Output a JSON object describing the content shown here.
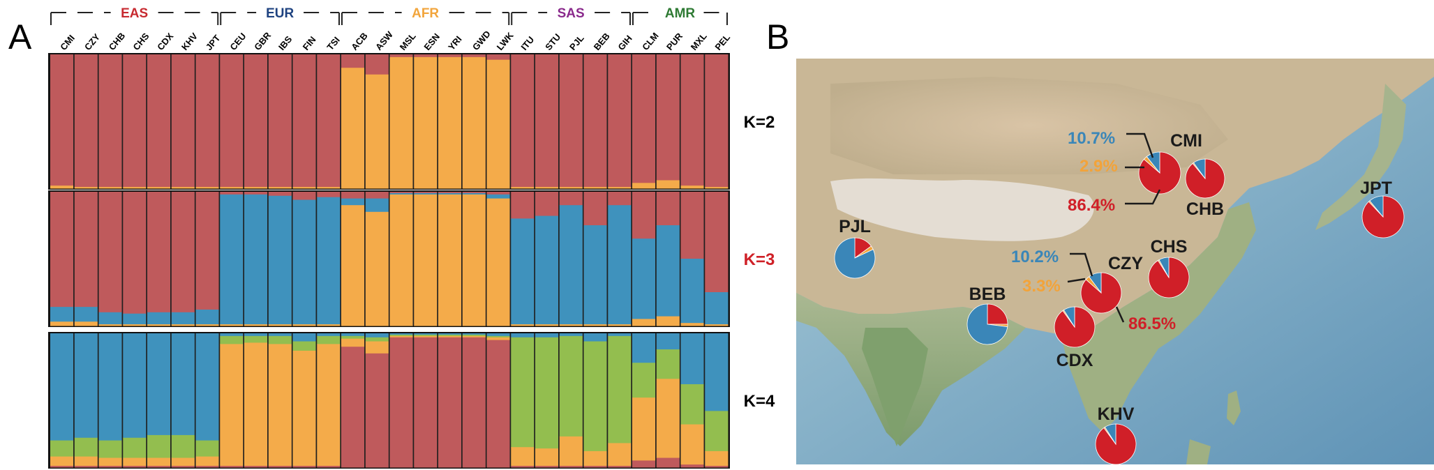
{
  "panels": {
    "a": "A",
    "b": "B"
  },
  "colors": {
    "red": "#bf5a5c",
    "orange": "#f4ab4a",
    "blue": "#3f92bd",
    "green": "#93be4f",
    "pie_red": "#d01f28",
    "pie_blue": "#3a86b8",
    "pie_orange": "#f2a33a",
    "EAS": "#c72a30",
    "EUR": "#1e4280",
    "AFR": "#f2a53c",
    "SAS": "#8a2a8c",
    "AMR": "#2e7a33"
  },
  "chart_data": [
    {
      "type": "admixture-bar",
      "groups": [
        {
          "name": "EAS",
          "populations": [
            "CMI",
            "CZY",
            "CHB",
            "CHS",
            "CDX",
            "KHV",
            "JPT"
          ]
        },
        {
          "name": "EUR",
          "populations": [
            "CEU",
            "GBR",
            "IBS",
            "FIN",
            "TSI"
          ]
        },
        {
          "name": "AFR",
          "populations": [
            "ACB",
            "ASW",
            "MSL",
            "ESN",
            "YRI",
            "GWD",
            "LWK"
          ]
        },
        {
          "name": "SAS",
          "populations": [
            "ITU",
            "STU",
            "PJL",
            "BEB",
            "GIH"
          ]
        },
        {
          "name": "AMR",
          "populations": [
            "CLM",
            "PUR",
            "MXL",
            "PEL"
          ]
        }
      ],
      "populations": [
        "CMI",
        "CZY",
        "CHB",
        "CHS",
        "CDX",
        "KHV",
        "JPT",
        "CEU",
        "GBR",
        "IBS",
        "FIN",
        "TSI",
        "ACB",
        "ASW",
        "MSL",
        "ESN",
        "YRI",
        "GWD",
        "LWK",
        "ITU",
        "STU",
        "PJL",
        "BEB",
        "GIH",
        "CLM",
        "PUR",
        "MXL",
        "PEL"
      ],
      "rows": [
        {
          "label": "K=2",
          "label_color": "#000000",
          "components": [
            "red",
            "orange"
          ],
          "fractions": [
            [
              0.98,
              0.02
            ],
            [
              0.99,
              0.01
            ],
            [
              0.99,
              0.01
            ],
            [
              0.99,
              0.01
            ],
            [
              0.99,
              0.01
            ],
            [
              0.99,
              0.01
            ],
            [
              0.99,
              0.01
            ],
            [
              0.99,
              0.01
            ],
            [
              0.99,
              0.01
            ],
            [
              0.99,
              0.01
            ],
            [
              0.99,
              0.01
            ],
            [
              0.99,
              0.01
            ],
            [
              0.1,
              0.9
            ],
            [
              0.15,
              0.85
            ],
            [
              0.02,
              0.98
            ],
            [
              0.02,
              0.98
            ],
            [
              0.02,
              0.98
            ],
            [
              0.02,
              0.98
            ],
            [
              0.04,
              0.96
            ],
            [
              0.99,
              0.01
            ],
            [
              0.99,
              0.01
            ],
            [
              0.99,
              0.01
            ],
            [
              0.99,
              0.01
            ],
            [
              0.99,
              0.01
            ],
            [
              0.96,
              0.04
            ],
            [
              0.94,
              0.06
            ],
            [
              0.98,
              0.02
            ],
            [
              0.99,
              0.01
            ]
          ]
        },
        {
          "label": "K=3",
          "label_color": "#cf2027",
          "components": [
            "red",
            "blue",
            "orange"
          ],
          "fractions": [
            [
              0.86,
              0.11,
              0.03
            ],
            [
              0.86,
              0.11,
              0.03
            ],
            [
              0.9,
              0.09,
              0.01
            ],
            [
              0.91,
              0.08,
              0.01
            ],
            [
              0.9,
              0.09,
              0.01
            ],
            [
              0.9,
              0.09,
              0.01
            ],
            [
              0.88,
              0.11,
              0.01
            ],
            [
              0.02,
              0.97,
              0.01
            ],
            [
              0.02,
              0.97,
              0.01
            ],
            [
              0.03,
              0.96,
              0.01
            ],
            [
              0.06,
              0.93,
              0.01
            ],
            [
              0.04,
              0.95,
              0.01
            ],
            [
              0.05,
              0.05,
              0.9
            ],
            [
              0.05,
              0.1,
              0.85
            ],
            [
              0.01,
              0.01,
              0.98
            ],
            [
              0.01,
              0.01,
              0.98
            ],
            [
              0.01,
              0.01,
              0.98
            ],
            [
              0.01,
              0.01,
              0.98
            ],
            [
              0.02,
              0.03,
              0.95
            ],
            [
              0.2,
              0.79,
              0.01
            ],
            [
              0.18,
              0.81,
              0.01
            ],
            [
              0.1,
              0.89,
              0.01
            ],
            [
              0.25,
              0.74,
              0.01
            ],
            [
              0.1,
              0.89,
              0.01
            ],
            [
              0.35,
              0.6,
              0.05
            ],
            [
              0.25,
              0.68,
              0.07
            ],
            [
              0.5,
              0.48,
              0.02
            ],
            [
              0.75,
              0.24,
              0.01
            ]
          ]
        },
        {
          "label": "K=4",
          "label_color": "#000000",
          "components": [
            "blue",
            "green",
            "orange",
            "red"
          ],
          "fractions": [
            [
              0.8,
              0.12,
              0.07,
              0.01
            ],
            [
              0.78,
              0.14,
              0.07,
              0.01
            ],
            [
              0.8,
              0.13,
              0.06,
              0.01
            ],
            [
              0.78,
              0.15,
              0.06,
              0.01
            ],
            [
              0.76,
              0.17,
              0.06,
              0.01
            ],
            [
              0.76,
              0.17,
              0.06,
              0.01
            ],
            [
              0.8,
              0.12,
              0.07,
              0.01
            ],
            [
              0.02,
              0.06,
              0.91,
              0.01
            ],
            [
              0.02,
              0.05,
              0.92,
              0.01
            ],
            [
              0.02,
              0.06,
              0.91,
              0.01
            ],
            [
              0.06,
              0.07,
              0.86,
              0.01
            ],
            [
              0.02,
              0.06,
              0.91,
              0.01
            ],
            [
              0.02,
              0.02,
              0.06,
              0.9
            ],
            [
              0.03,
              0.03,
              0.09,
              0.85
            ],
            [
              0.01,
              0.01,
              0.01,
              0.97
            ],
            [
              0.01,
              0.01,
              0.01,
              0.97
            ],
            [
              0.01,
              0.01,
              0.01,
              0.97
            ],
            [
              0.01,
              0.01,
              0.01,
              0.97
            ],
            [
              0.02,
              0.01,
              0.02,
              0.95
            ],
            [
              0.03,
              0.82,
              0.14,
              0.01
            ],
            [
              0.03,
              0.83,
              0.13,
              0.01
            ],
            [
              0.02,
              0.75,
              0.22,
              0.01
            ],
            [
              0.06,
              0.82,
              0.11,
              0.01
            ],
            [
              0.02,
              0.8,
              0.17,
              0.01
            ],
            [
              0.22,
              0.26,
              0.47,
              0.05
            ],
            [
              0.12,
              0.22,
              0.59,
              0.07
            ],
            [
              0.38,
              0.3,
              0.3,
              0.02
            ],
            [
              0.58,
              0.3,
              0.11,
              0.01
            ]
          ]
        }
      ]
    },
    {
      "type": "pie",
      "components": [
        "pie_red",
        "pie_blue",
        "pie_orange"
      ],
      "pies": [
        {
          "label": "CMI",
          "label_color": "#d01f28",
          "fractions": [
            0.864,
            0.107,
            0.029
          ],
          "callouts": {
            "blue": "10.7%",
            "orange": "2.9%",
            "red": "86.4%"
          }
        },
        {
          "label": "CHB",
          "label_color": "#1a1a1a",
          "fractions": [
            0.89,
            0.1,
            0.01
          ]
        },
        {
          "label": "JPT",
          "label_color": "#1a1a1a",
          "fractions": [
            0.88,
            0.11,
            0.01
          ]
        },
        {
          "label": "PJL",
          "label_color": "#1a1a1a",
          "fractions": [
            0.15,
            0.82,
            0.03
          ]
        },
        {
          "label": "CZY",
          "label_color": "#d01f28",
          "fractions": [
            0.865,
            0.102,
            0.033
          ],
          "callouts": {
            "blue": "10.2%",
            "orange": "3.3%",
            "red": "86.5%"
          }
        },
        {
          "label": "CHS",
          "label_color": "#1a1a1a",
          "fractions": [
            0.91,
            0.08,
            0.01
          ]
        },
        {
          "label": "BEB",
          "label_color": "#1a1a1a",
          "fractions": [
            0.25,
            0.73,
            0.02
          ]
        },
        {
          "label": "CDX",
          "label_color": "#1a1a1a",
          "fractions": [
            0.9,
            0.09,
            0.01
          ]
        },
        {
          "label": "KHV",
          "label_color": "#1a1a1a",
          "fractions": [
            0.9,
            0.09,
            0.01
          ]
        }
      ]
    }
  ]
}
